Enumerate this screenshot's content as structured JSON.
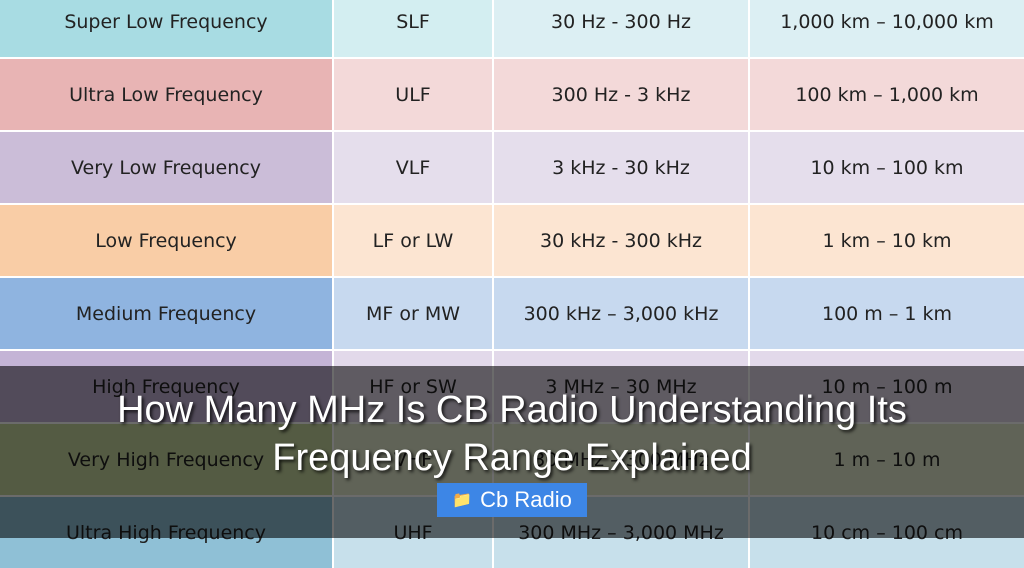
{
  "table": {
    "rows": [
      {
        "name": "Super Low Frequency",
        "abbr": "SLF",
        "freq": "30 Hz - 300 Hz",
        "wave": "1,000 km – 10,000 km",
        "bg": [
          "#a8dce3",
          "#d3eef1",
          "#dceff3",
          "#dceff3"
        ]
      },
      {
        "name": "Ultra Low Frequency",
        "abbr": "ULF",
        "freq": "300 Hz - 3 kHz",
        "wave": "100 km – 1,000 km",
        "bg": [
          "#e8b4b4",
          "#f3d9d9",
          "#f3d9d9",
          "#f3d9d9"
        ]
      },
      {
        "name": "Very Low Frequency",
        "abbr": "VLF",
        "freq": "3 kHz - 30 kHz",
        "wave": "10 km – 100 km",
        "bg": [
          "#cbbdd8",
          "#e5deec",
          "#e5deec",
          "#e5deec"
        ]
      },
      {
        "name": "Low Frequency",
        "abbr": "LF or LW",
        "freq": "30 kHz - 300 kHz",
        "wave": "1 km – 10 km",
        "bg": [
          "#f9cda6",
          "#fce5d2",
          "#fce5d2",
          "#fce5d2"
        ]
      },
      {
        "name": "Medium Frequency",
        "abbr": "MF or MW",
        "freq": "300 kHz – 3,000 kHz",
        "wave": "100 m – 1 km",
        "bg": [
          "#8fb4e0",
          "#c7d9ef",
          "#c7d9ef",
          "#c7d9ef"
        ]
      },
      {
        "name": "High Frequency",
        "abbr": "HF or SW",
        "freq": "3 MHz – 30 MHz",
        "wave": "10 m – 100 m",
        "bg": [
          "#c4b4d6",
          "#e2d9ea",
          "#e2d9ea",
          "#e2d9ea"
        ]
      },
      {
        "name": "Very High Frequency",
        "abbr": "VHF",
        "freq": "30 MHz – 300 MHz",
        "wave": "1 m – 10 m",
        "bg": [
          "#c9d9a0",
          "#e4ecd0",
          "#e4ecd0",
          "#e4ecd0"
        ]
      },
      {
        "name": "Ultra High Frequency",
        "abbr": "UHF",
        "freq": "300 MHz – 3,000 MHz",
        "wave": "10 cm – 100 cm",
        "bg": [
          "#8fc0d6",
          "#c7e0eb",
          "#c7e0eb",
          "#c7e0eb"
        ]
      }
    ]
  },
  "overlay": {
    "title_line1": "How Many MHz Is CB Radio Understanding Its",
    "title_line2": "Frequency Range Explained",
    "tag_icon": "folder-icon",
    "tag_label": "Cb Radio"
  }
}
